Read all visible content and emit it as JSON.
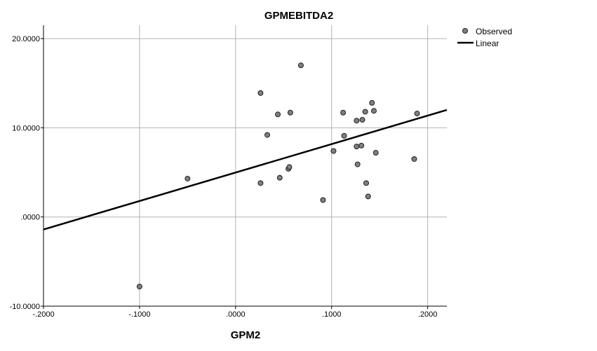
{
  "chart_data": {
    "type": "scatter",
    "title": "GPMEBITDA2",
    "xlabel": "GPM2",
    "ylabel": "",
    "xlim": [
      -0.2,
      0.22
    ],
    "ylim": [
      -10,
      21.5
    ],
    "x_ticks": [
      -0.2,
      -0.1,
      0.0,
      0.1,
      0.2
    ],
    "x_tick_labels": [
      "-.2000",
      "-.1000",
      ".0000",
      ".1000",
      ".2000"
    ],
    "y_ticks": [
      -10,
      0,
      10,
      20
    ],
    "y_tick_labels": [
      "-10.0000",
      ".0000",
      "10.0000",
      "20.0000"
    ],
    "grid": true,
    "legend_position": "top-right",
    "series": [
      {
        "name": "Observed",
        "kind": "points",
        "color": "#7f7f7f",
        "points": [
          [
            -0.1,
            -7.8
          ],
          [
            -0.05,
            4.3
          ],
          [
            0.026,
            13.9
          ],
          [
            0.026,
            3.8
          ],
          [
            0.033,
            9.2
          ],
          [
            0.044,
            11.5
          ],
          [
            0.046,
            4.4
          ],
          [
            0.055,
            5.4
          ],
          [
            0.056,
            5.6
          ],
          [
            0.057,
            11.7
          ],
          [
            0.068,
            17.0
          ],
          [
            0.091,
            1.9
          ],
          [
            0.102,
            7.4
          ],
          [
            0.112,
            11.7
          ],
          [
            0.113,
            9.1
          ],
          [
            0.126,
            7.9
          ],
          [
            0.126,
            10.8
          ],
          [
            0.127,
            5.9
          ],
          [
            0.131,
            8.0
          ],
          [
            0.132,
            10.9
          ],
          [
            0.135,
            11.8
          ],
          [
            0.136,
            3.8
          ],
          [
            0.138,
            2.3
          ],
          [
            0.142,
            12.8
          ],
          [
            0.144,
            11.9
          ],
          [
            0.146,
            7.2
          ],
          [
            0.186,
            6.5
          ],
          [
            0.189,
            11.6
          ]
        ]
      },
      {
        "name": "Linear",
        "kind": "line",
        "color": "#000000",
        "points": [
          [
            -0.2,
            -1.4
          ],
          [
            0.22,
            12.0
          ]
        ]
      }
    ]
  }
}
